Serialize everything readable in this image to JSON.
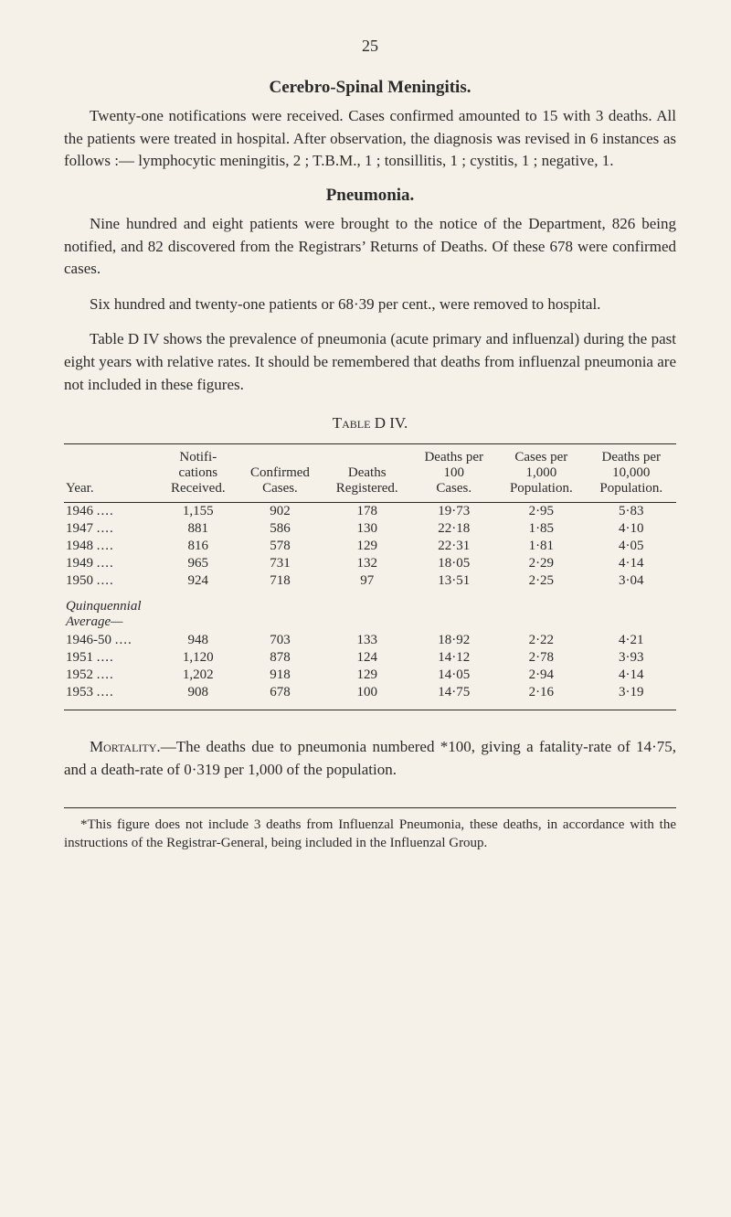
{
  "page_number": "25",
  "section1": {
    "title": "Cerebro-Spinal Meningitis.",
    "para": "Twenty-one notifications were received. Cases confirmed amounted to 15 with 3 deaths. All the patients were treated in hospital. After observation, the diagnosis was revised in 6 instances as follows :— lymphocytic meningitis, 2 ; T.B.M., 1 ; tonsillitis, 1 ; cystitis, 1 ; negative, 1."
  },
  "section2": {
    "title": "Pneumonia.",
    "para1": "Nine hundred and eight patients were brought to the notice of the Department, 826 being notified, and 82 discovered from the Registrars’ Returns of Deaths. Of these 678 were confirmed cases.",
    "para2": "Six hundred and twenty-one patients or 68·39 per cent., were removed to hospital.",
    "para3": "Table D IV shows the prevalence of pneumonia (acute primary and influenzal) during the past eight years with relative rates. It should be remembered that deaths from influenzal pneumonia are not included in these figures."
  },
  "table": {
    "title": "Table D IV.",
    "columns": {
      "c0": "Year.",
      "c1a": "Notifi-",
      "c1b": "cations",
      "c1c": "Received.",
      "c2a": "Confirmed",
      "c2b": "Cases.",
      "c3a": "Deaths",
      "c3b": "Registered.",
      "c4a": "Deaths per",
      "c4b": "100",
      "c4c": "Cases.",
      "c5a": "Cases per",
      "c5b": "1,000",
      "c5c": "Population.",
      "c6a": "Deaths per",
      "c6b": "10,000",
      "c6c": "Population."
    },
    "rows1": [
      {
        "year": "1946",
        "dots": "....",
        "v1": "1,155",
        "v2": "902",
        "v3": "178",
        "v4": "19·73",
        "v5": "2·95",
        "v6": "5·83"
      },
      {
        "year": "1947",
        "dots": "....",
        "v1": "881",
        "v2": "586",
        "v3": "130",
        "v4": "22·18",
        "v5": "1·85",
        "v6": "4·10"
      },
      {
        "year": "1948",
        "dots": "....",
        "v1": "816",
        "v2": "578",
        "v3": "129",
        "v4": "22·31",
        "v5": "1·81",
        "v6": "4·05"
      },
      {
        "year": "1949",
        "dots": "....",
        "v1": "965",
        "v2": "731",
        "v3": "132",
        "v4": "18·05",
        "v5": "2·29",
        "v6": "4·14"
      },
      {
        "year": "1950",
        "dots": "....",
        "v1": "924",
        "v2": "718",
        "v3": "97",
        "v4": "13·51",
        "v5": "2·25",
        "v6": "3·04"
      }
    ],
    "group_label1": "Quinquennial",
    "group_label2": "Average—",
    "rows2": [
      {
        "year": "1946-50",
        "dots": "....",
        "v1": "948",
        "v2": "703",
        "v3": "133",
        "v4": "18·92",
        "v5": "2·22",
        "v6": "4·21"
      },
      {
        "year": "1951",
        "dots": "....",
        "v1": "1,120",
        "v2": "878",
        "v3": "124",
        "v4": "14·12",
        "v5": "2·78",
        "v6": "3·93"
      },
      {
        "year": "1952",
        "dots": "....",
        "v1": "1,202",
        "v2": "918",
        "v3": "129",
        "v4": "14·05",
        "v5": "2·94",
        "v6": "4·14"
      },
      {
        "year": "1953",
        "dots": "....",
        "v1": "908",
        "v2": "678",
        "v3": "100",
        "v4": "14·75",
        "v5": "2·16",
        "v6": "3·19"
      }
    ]
  },
  "mortality": {
    "label": "Mortality.",
    "text": "—The deaths due to pneumonia numbered *100, giving a fatality-rate of 14·75, and a death-rate of 0·319 per 1,000 of the population."
  },
  "footnote": "*This figure does not include 3 deaths from Influenzal Pneumonia, these deaths, in accordance with the instructions of the Registrar-General, being included in the Influenzal Group.",
  "style": {
    "background_color": "#f5f1e8",
    "text_color": "#2a2a2a",
    "body_fontsize": 17,
    "table_fontsize": 15,
    "footnote_fontsize": 15
  }
}
